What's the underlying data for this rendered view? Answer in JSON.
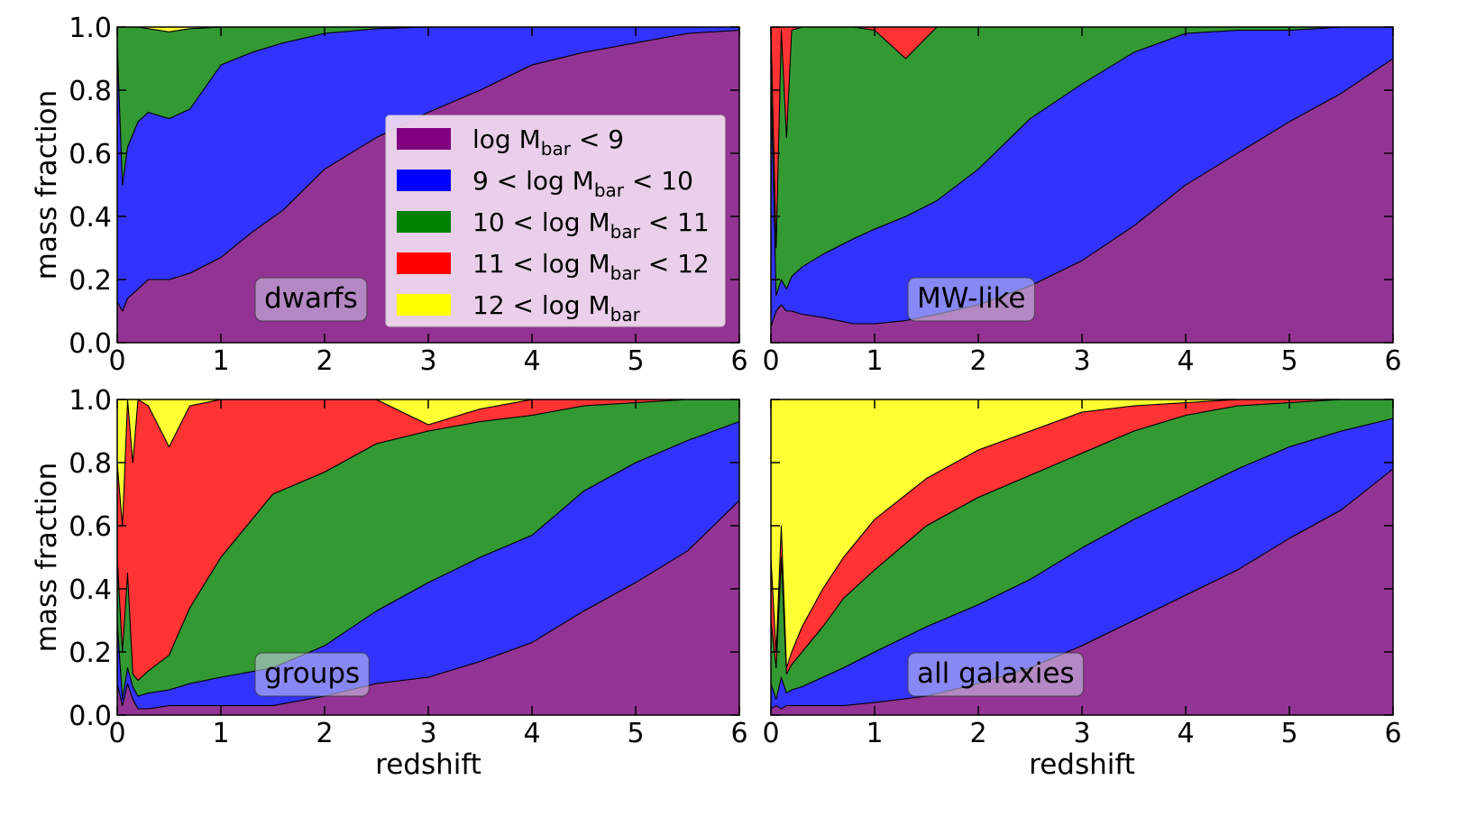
{
  "chart_data": {
    "type": "area",
    "stacked": true,
    "ylim": [
      0,
      1
    ],
    "xlim": [
      0,
      6
    ],
    "x_ticks": [
      "0",
      "1",
      "2",
      "3",
      "4",
      "5",
      "6"
    ],
    "y_ticks": [
      "0.0",
      "0.2",
      "0.4",
      "0.6",
      "0.8",
      "1.0"
    ],
    "ylabel": "mass fraction",
    "xlabel": "redshift",
    "colors": [
      "#933393",
      "#3333ff",
      "#339933",
      "#ff3333",
      "#ffff33"
    ],
    "legend": {
      "placement": "upper-right of top-left panel",
      "entries": [
        {
          "pre": "log M",
          "sub": "bar",
          "post": " < 9",
          "swatch": "#800080"
        },
        {
          "pre": "9 < log M",
          "sub": "bar",
          "post": " < 10",
          "swatch": "#0000ff"
        },
        {
          "pre": "10 < log M",
          "sub": "bar",
          "post": " < 11",
          "swatch": "#008000"
        },
        {
          "pre": "11 < log M",
          "sub": "bar",
          "post": " < 12",
          "swatch": "#ff0000"
        },
        {
          "pre": "12 < log M",
          "sub": "bar",
          "post": "",
          "swatch": "#ffff00"
        }
      ]
    },
    "panels": [
      {
        "label": "dwarfs",
        "x": [
          0,
          0.05,
          0.1,
          0.2,
          0.3,
          0.5,
          0.7,
          1.0,
          1.3,
          1.6,
          2.0,
          2.5,
          3.0,
          3.5,
          4.0,
          4.5,
          5.0,
          5.5,
          6.0
        ],
        "boundaries": [
          [
            0.13,
            0.1,
            0.14,
            0.17,
            0.2,
            0.2,
            0.22,
            0.27,
            0.35,
            0.42,
            0.55,
            0.65,
            0.73,
            0.8,
            0.88,
            0.92,
            0.95,
            0.98,
            0.99
          ],
          [
            0.95,
            0.5,
            0.62,
            0.7,
            0.73,
            0.71,
            0.74,
            0.88,
            0.92,
            0.95,
            0.98,
            0.995,
            1.0,
            1.0,
            1.0,
            1.0,
            1.0,
            1.0,
            1.0
          ],
          [
            1.0,
            1.0,
            1.0,
            1.0,
            0.995,
            0.985,
            0.995,
            1.0,
            1.0,
            1.0,
            1.0,
            1.0,
            1.0,
            1.0,
            1.0,
            1.0,
            1.0,
            1.0,
            1.0
          ],
          [
            1.0,
            1.0,
            1.0,
            1.0,
            0.995,
            0.985,
            0.995,
            1.0,
            1.0,
            1.0,
            1.0,
            1.0,
            1.0,
            1.0,
            1.0,
            1.0,
            1.0,
            1.0,
            1.0
          ]
        ]
      },
      {
        "label": "MW-like",
        "x": [
          0,
          0.05,
          0.1,
          0.15,
          0.2,
          0.3,
          0.5,
          0.8,
          1.0,
          1.3,
          1.6,
          2.0,
          2.5,
          3.0,
          3.5,
          4.0,
          4.5,
          5.0,
          5.5,
          6.0
        ],
        "boundaries": [
          [
            0.05,
            0.1,
            0.12,
            0.1,
            0.1,
            0.09,
            0.08,
            0.06,
            0.06,
            0.07,
            0.09,
            0.12,
            0.18,
            0.26,
            0.37,
            0.5,
            0.6,
            0.7,
            0.79,
            0.9
          ],
          [
            0.85,
            0.15,
            0.2,
            0.17,
            0.21,
            0.24,
            0.28,
            0.33,
            0.36,
            0.4,
            0.45,
            0.55,
            0.71,
            0.82,
            0.92,
            0.98,
            0.99,
            0.99,
            1.0,
            1.0
          ],
          [
            1.0,
            0.3,
            0.99,
            0.65,
            0.99,
            1.0,
            1.0,
            1.0,
            0.99,
            0.9,
            1.0,
            1.0,
            1.0,
            1.0,
            1.0,
            1.0,
            1.0,
            1.0,
            1.0,
            1.0
          ],
          [
            1.0,
            1.0,
            1.0,
            1.0,
            1.0,
            1.0,
            1.0,
            1.0,
            1.0,
            1.0,
            1.0,
            1.0,
            1.0,
            1.0,
            1.0,
            1.0,
            1.0,
            1.0,
            1.0,
            1.0
          ]
        ]
      },
      {
        "label": "groups",
        "x": [
          0,
          0.05,
          0.1,
          0.15,
          0.2,
          0.3,
          0.5,
          0.7,
          1.0,
          1.5,
          2.0,
          2.5,
          3.0,
          3.5,
          4.0,
          4.5,
          5.0,
          5.5,
          6.0
        ],
        "boundaries": [
          [
            0.1,
            0.03,
            0.1,
            0.05,
            0.02,
            0.02,
            0.03,
            0.03,
            0.03,
            0.03,
            0.06,
            0.1,
            0.12,
            0.17,
            0.23,
            0.33,
            0.42,
            0.52,
            0.68
          ],
          [
            0.3,
            0.05,
            0.15,
            0.09,
            0.06,
            0.07,
            0.08,
            0.1,
            0.12,
            0.15,
            0.22,
            0.33,
            0.42,
            0.5,
            0.57,
            0.71,
            0.8,
            0.87,
            0.93
          ],
          [
            0.5,
            0.2,
            0.45,
            0.13,
            0.11,
            0.14,
            0.19,
            0.34,
            0.5,
            0.7,
            0.77,
            0.86,
            0.9,
            0.93,
            0.95,
            0.98,
            0.99,
            1.0,
            1.0
          ],
          [
            0.8,
            0.6,
            1.0,
            0.8,
            1.0,
            0.98,
            0.85,
            0.98,
            1.0,
            1.0,
            1.0,
            1.0,
            0.92,
            0.97,
            1.0,
            1.0,
            1.0,
            1.0,
            1.0
          ]
        ]
      },
      {
        "label": "all galaxies",
        "x": [
          0,
          0.05,
          0.1,
          0.15,
          0.2,
          0.3,
          0.5,
          0.7,
          1.0,
          1.5,
          2.0,
          2.5,
          3.0,
          3.5,
          4.0,
          4.5,
          5.0,
          5.5,
          6.0
        ],
        "boundaries": [
          [
            0.02,
            0.03,
            0.02,
            0.03,
            0.03,
            0.03,
            0.03,
            0.03,
            0.04,
            0.06,
            0.1,
            0.15,
            0.22,
            0.3,
            0.38,
            0.46,
            0.56,
            0.65,
            0.78
          ],
          [
            0.1,
            0.05,
            0.12,
            0.07,
            0.08,
            0.09,
            0.12,
            0.15,
            0.2,
            0.28,
            0.35,
            0.43,
            0.53,
            0.62,
            0.7,
            0.78,
            0.85,
            0.9,
            0.94
          ],
          [
            0.3,
            0.15,
            0.5,
            0.13,
            0.16,
            0.2,
            0.28,
            0.37,
            0.46,
            0.6,
            0.69,
            0.76,
            0.83,
            0.9,
            0.95,
            0.98,
            0.99,
            1.0,
            1.0
          ],
          [
            0.5,
            0.2,
            0.6,
            0.15,
            0.2,
            0.28,
            0.4,
            0.5,
            0.62,
            0.75,
            0.84,
            0.9,
            0.96,
            0.98,
            0.99,
            1.0,
            1.0,
            1.0,
            1.0
          ]
        ]
      }
    ]
  }
}
